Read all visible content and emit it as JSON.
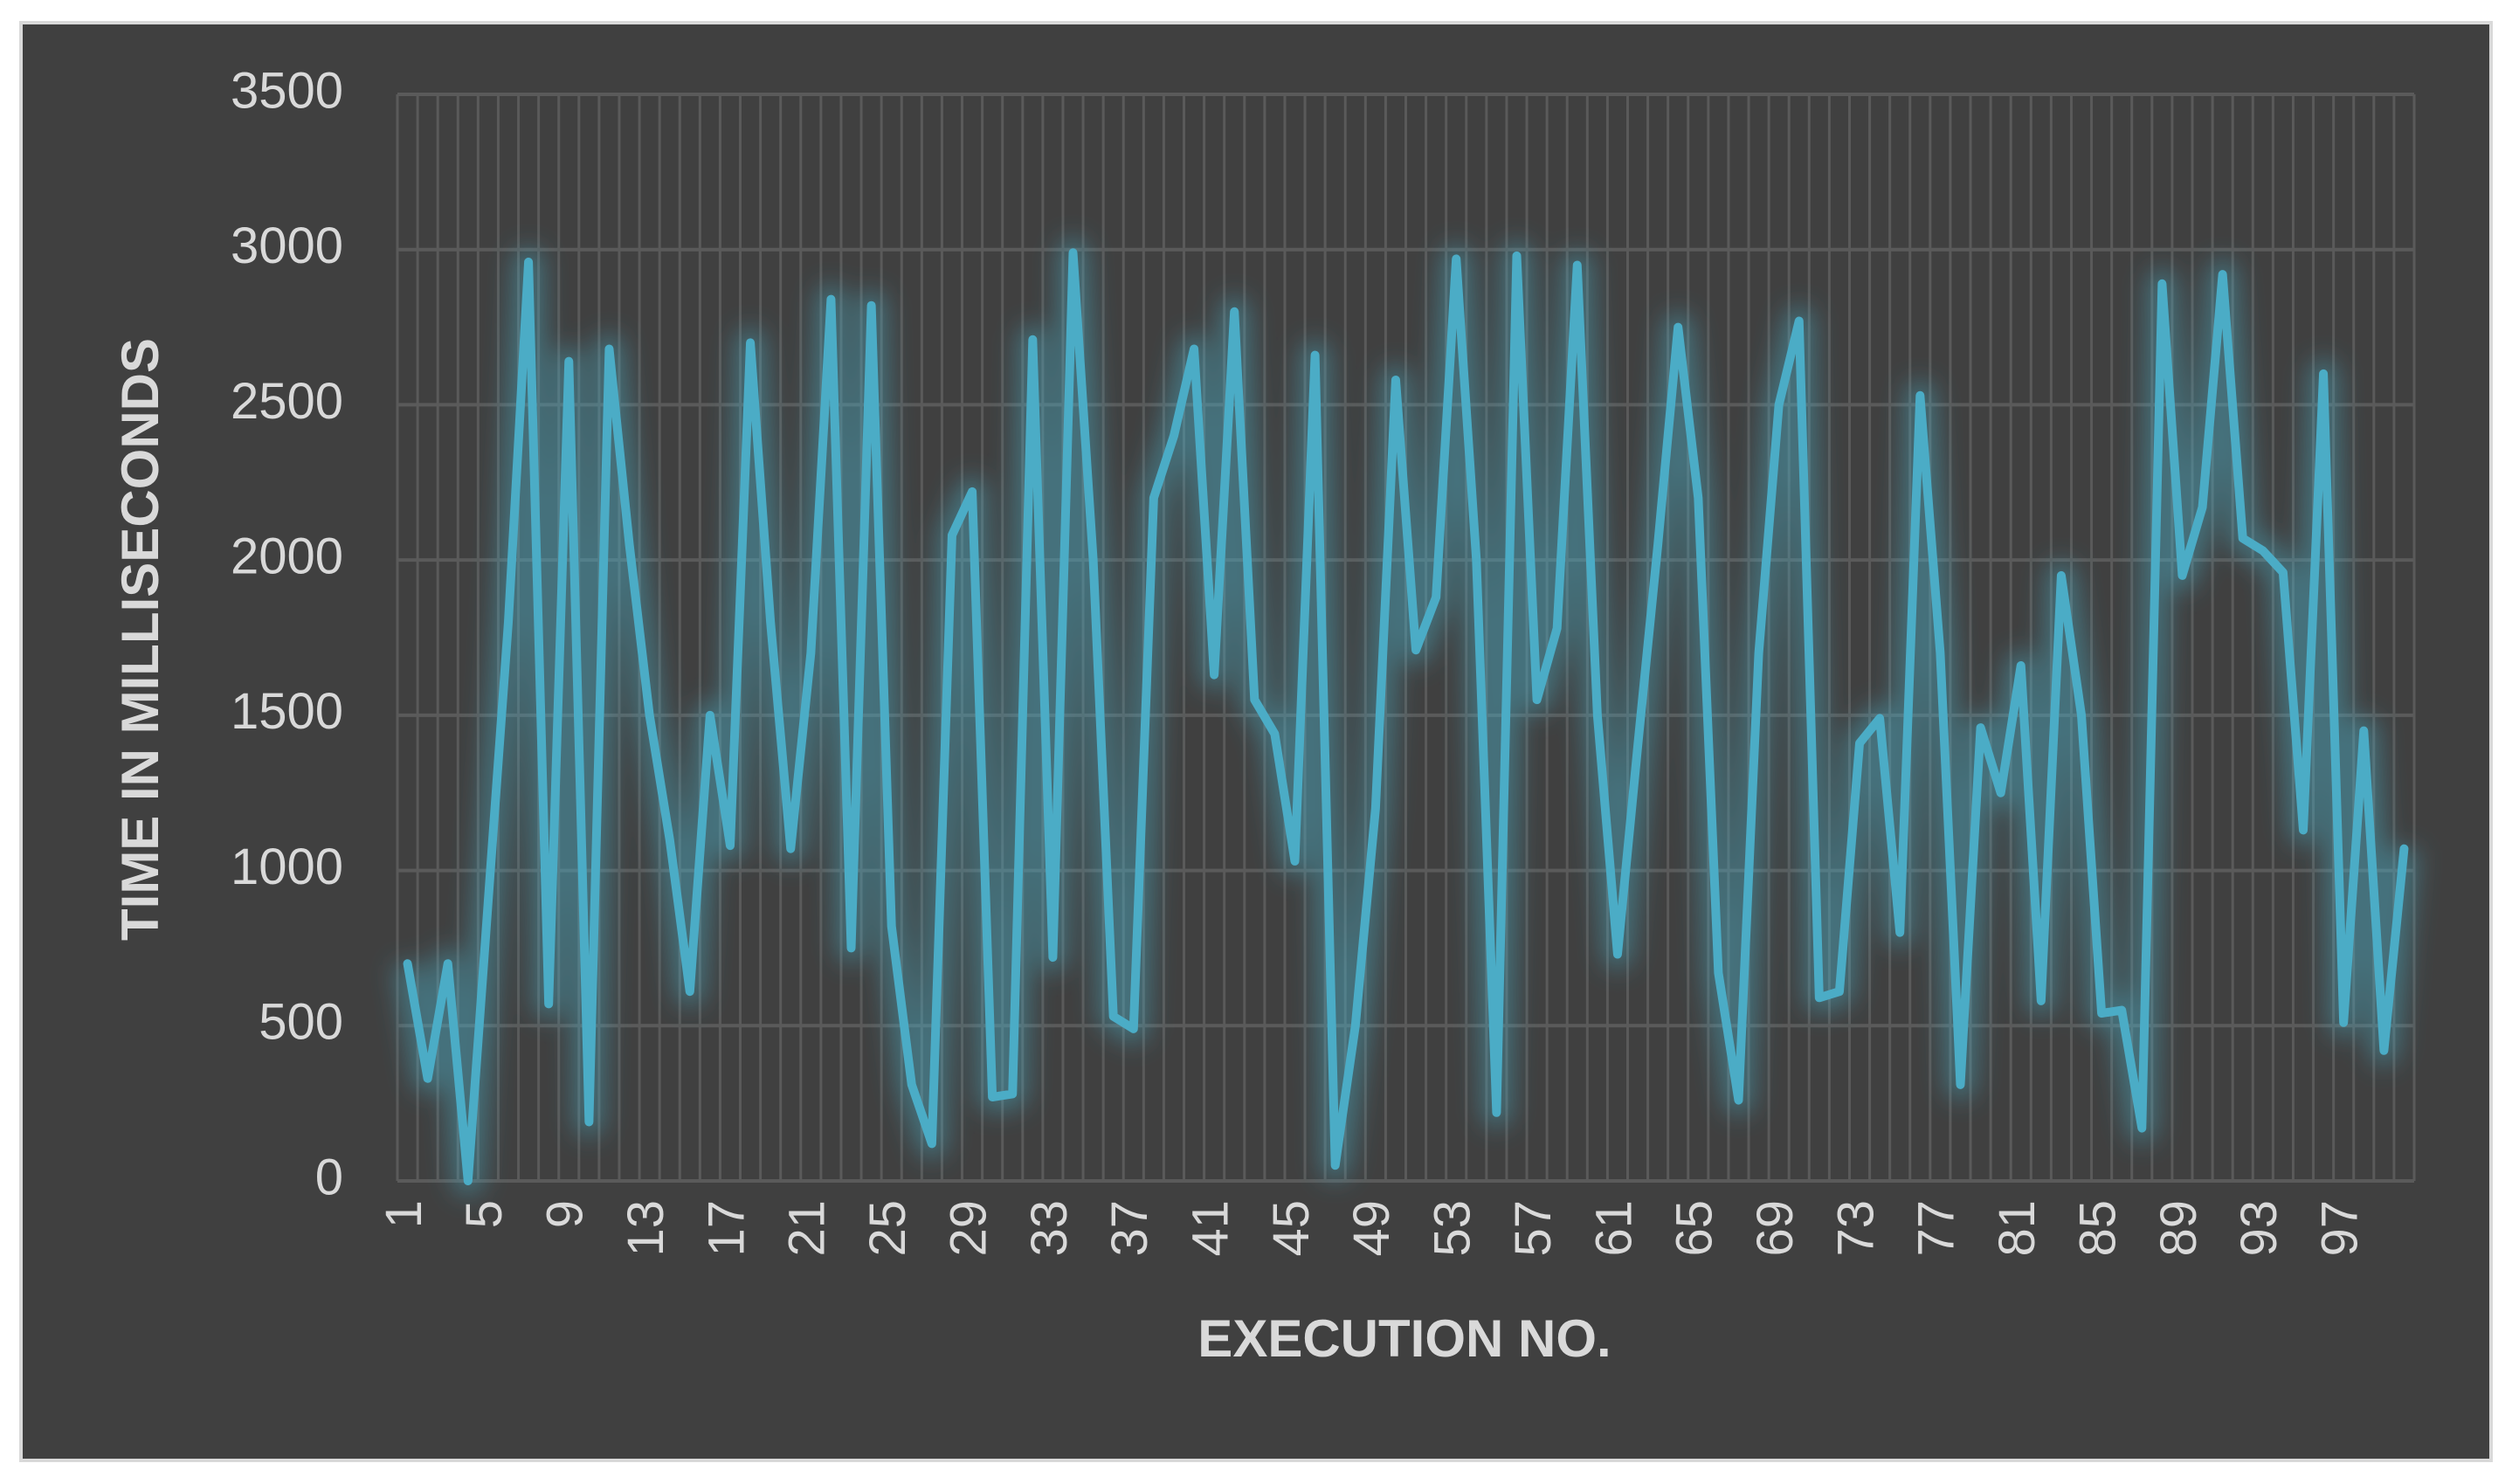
{
  "chart_data": {
    "type": "line",
    "x_label": "EXECUTION NO.",
    "y_label": "TIME IN MILLISECONDS",
    "categories": [
      "1",
      null,
      null,
      null,
      "5",
      null,
      null,
      null,
      "9",
      null,
      null,
      null,
      "13",
      null,
      null,
      null,
      "17",
      null,
      null,
      null,
      "21",
      null,
      null,
      null,
      "25",
      null,
      null,
      null,
      "29",
      null,
      null,
      null,
      "33",
      null,
      null,
      null,
      "37",
      null,
      null,
      null,
      "41",
      null,
      null,
      null,
      "45",
      null,
      null,
      null,
      "49",
      null,
      null,
      null,
      "53",
      null,
      null,
      null,
      "57",
      null,
      null,
      null,
      "61",
      null,
      null,
      null,
      "65",
      null,
      null,
      null,
      "69",
      null,
      null,
      null,
      "73",
      null,
      null,
      null,
      "77",
      null,
      null,
      null,
      "81",
      null,
      null,
      null,
      "85",
      null,
      null,
      null,
      "89",
      null,
      null,
      null,
      "93",
      null,
      null,
      null,
      "97",
      null,
      null,
      null
    ],
    "values": [
      700,
      330,
      700,
      0,
      900,
      1800,
      2960,
      570,
      2640,
      190,
      2680,
      2050,
      1500,
      1100,
      610,
      1500,
      1080,
      2700,
      1800,
      1070,
      1700,
      2840,
      750,
      2820,
      820,
      310,
      120,
      2080,
      2220,
      270,
      280,
      2710,
      720,
      2990,
      2000,
      530,
      490,
      2200,
      2400,
      2680,
      1630,
      2800,
      1550,
      1440,
      1030,
      2660,
      50,
      500,
      1200,
      2580,
      1710,
      1880,
      2970,
      2000,
      220,
      2980,
      1550,
      1780,
      2950,
      1500,
      730,
      1400,
      2050,
      2750,
      2200,
      670,
      260,
      1700,
      2500,
      2770,
      590,
      610,
      1410,
      1490,
      800,
      2530,
      1700,
      310,
      1460,
      1250,
      1660,
      580,
      1950,
      1500,
      540,
      550,
      170,
      2890,
      1950,
      2170,
      2920,
      2070,
      2030,
      1960,
      1130,
      2600,
      510,
      1450,
      420,
      1070
    ],
    "color": "#4bacc6",
    "ylim": [
      0,
      3500
    ],
    "yticks": [
      0,
      500,
      1000,
      1500,
      2000,
      2500,
      3000,
      3500
    ],
    "grid": true
  }
}
